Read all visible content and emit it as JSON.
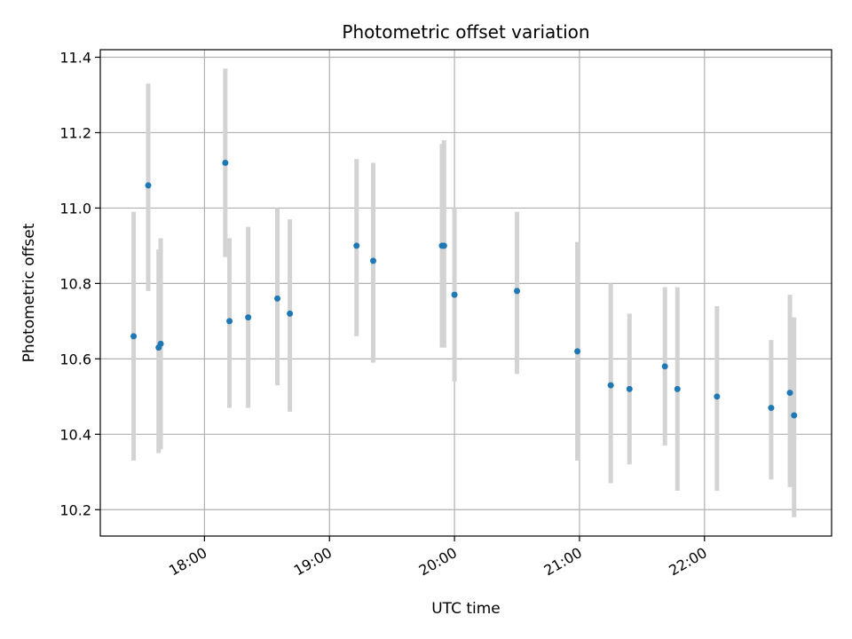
{
  "chart_data": {
    "type": "scatter",
    "title": "Photometric offset variation",
    "xlabel": "UTC time",
    "ylabel": "Photometric offset",
    "x_ticks": [
      "18:00",
      "19:00",
      "20:00",
      "21:00",
      "22:00"
    ],
    "y_ticks": [
      "10.2",
      "10.4",
      "10.6",
      "10.8",
      "11.0",
      "11.2",
      "11.4"
    ],
    "xlim": [
      "17:10",
      "23:01"
    ],
    "ylim": [
      10.13,
      11.42
    ],
    "grid": true,
    "point_color": "#1f77b4",
    "errorbar_color": "#d3d3d3",
    "series": [
      {
        "points": [
          {
            "t": "17:26",
            "y": 10.66,
            "lo": 10.33,
            "hi": 10.99
          },
          {
            "t": "17:33",
            "y": 11.06,
            "lo": 10.78,
            "hi": 11.33
          },
          {
            "t": "17:38",
            "y": 10.63,
            "lo": 10.35,
            "hi": 10.89
          },
          {
            "t": "17:39",
            "y": 10.64,
            "lo": 10.36,
            "hi": 10.92
          },
          {
            "t": "18:10",
            "y": 11.12,
            "lo": 10.87,
            "hi": 11.37
          },
          {
            "t": "18:12",
            "y": 10.7,
            "lo": 10.47,
            "hi": 10.92
          },
          {
            "t": "18:21",
            "y": 10.71,
            "lo": 10.47,
            "hi": 10.95
          },
          {
            "t": "18:35",
            "y": 10.76,
            "lo": 10.53,
            "hi": 11.0
          },
          {
            "t": "18:41",
            "y": 10.72,
            "lo": 10.46,
            "hi": 10.97
          },
          {
            "t": "19:13",
            "y": 10.9,
            "lo": 10.66,
            "hi": 11.13
          },
          {
            "t": "19:21",
            "y": 10.86,
            "lo": 10.59,
            "hi": 11.12
          },
          {
            "t": "19:54",
            "y": 10.9,
            "lo": 10.63,
            "hi": 11.17
          },
          {
            "t": "19:55",
            "y": 10.9,
            "lo": 10.63,
            "hi": 11.18
          },
          {
            "t": "20:00",
            "y": 10.77,
            "lo": 10.54,
            "hi": 11.0
          },
          {
            "t": "20:30",
            "y": 10.78,
            "lo": 10.56,
            "hi": 10.99
          },
          {
            "t": "20:59",
            "y": 10.62,
            "lo": 10.33,
            "hi": 10.91
          },
          {
            "t": "21:15",
            "y": 10.53,
            "lo": 10.27,
            "hi": 10.8
          },
          {
            "t": "21:24",
            "y": 10.52,
            "lo": 10.32,
            "hi": 10.72
          },
          {
            "t": "21:41",
            "y": 10.58,
            "lo": 10.37,
            "hi": 10.79
          },
          {
            "t": "21:47",
            "y": 10.52,
            "lo": 10.25,
            "hi": 10.79
          },
          {
            "t": "22:06",
            "y": 10.5,
            "lo": 10.25,
            "hi": 10.74
          },
          {
            "t": "22:32",
            "y": 10.47,
            "lo": 10.28,
            "hi": 10.65
          },
          {
            "t": "22:41",
            "y": 10.51,
            "lo": 10.26,
            "hi": 10.77
          },
          {
            "t": "22:43",
            "y": 10.45,
            "lo": 10.18,
            "hi": 10.71
          }
        ]
      }
    ]
  }
}
